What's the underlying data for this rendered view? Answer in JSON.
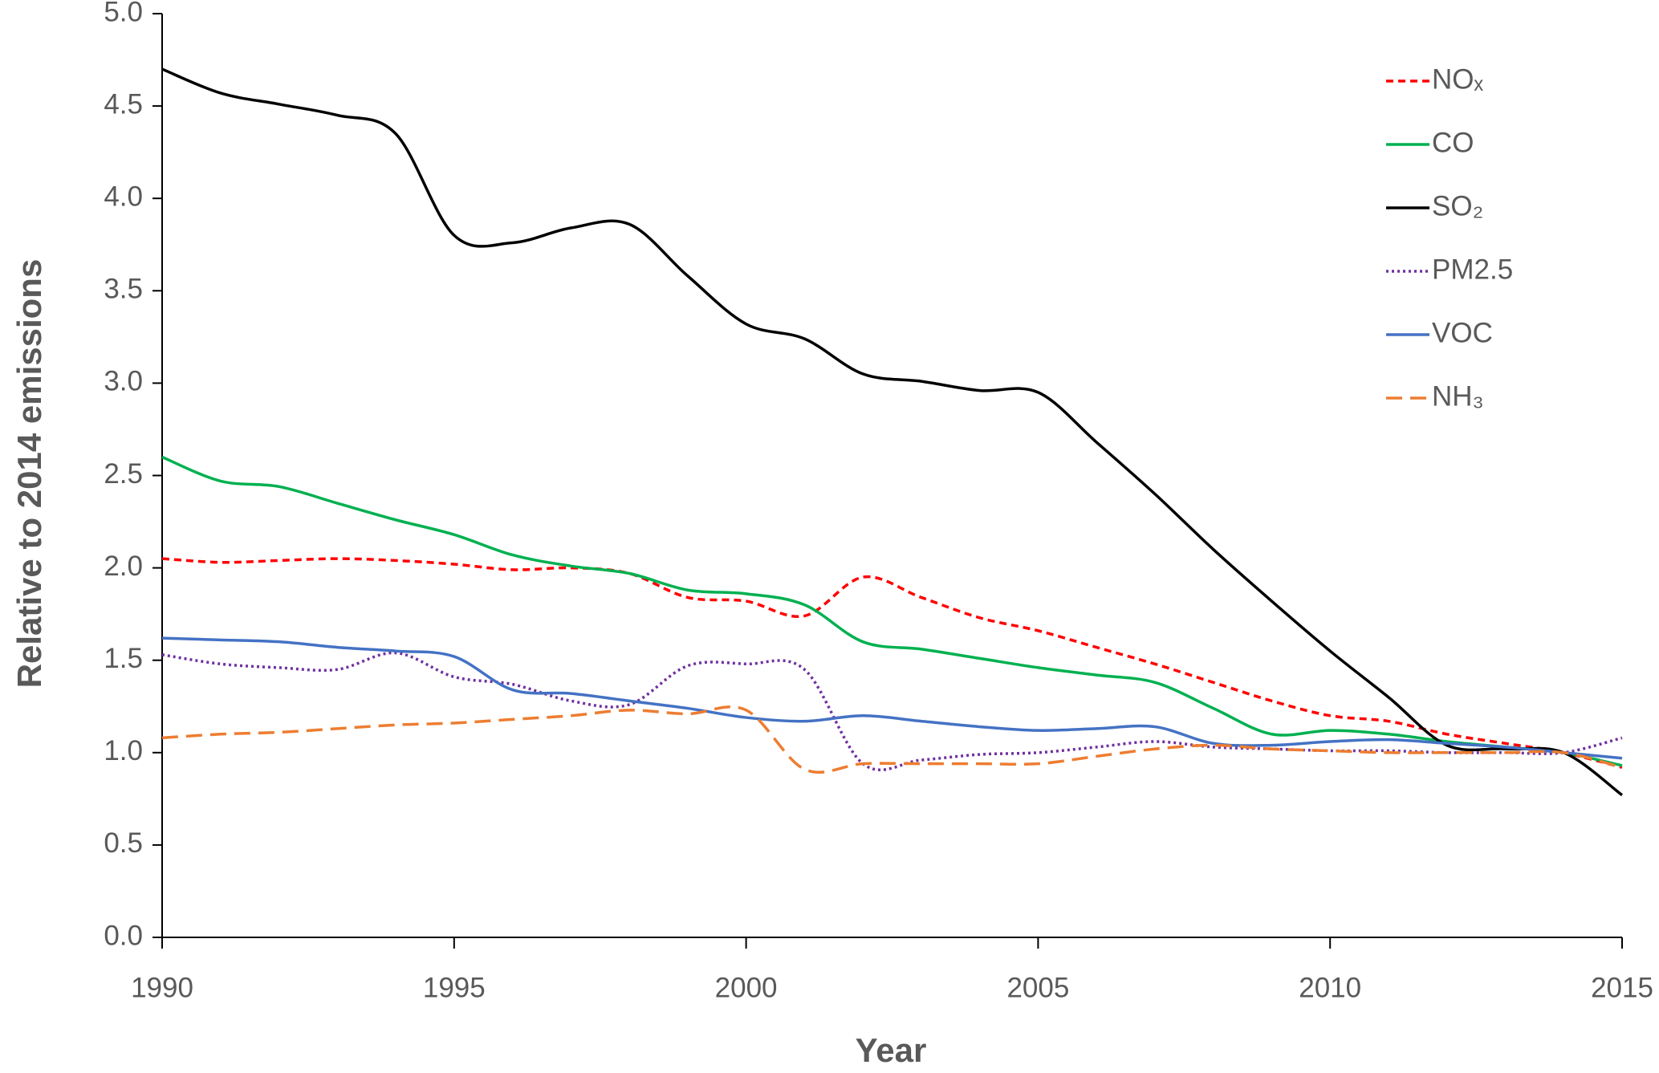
{
  "chart_data": {
    "type": "line",
    "x_label": "Year",
    "y_label": "Relative to 2014 emissions",
    "x": [
      1990,
      1991,
      1992,
      1993,
      1994,
      1995,
      1996,
      1997,
      1998,
      1999,
      2000,
      2001,
      2002,
      2003,
      2004,
      2005,
      2006,
      2007,
      2008,
      2009,
      2010,
      2011,
      2012,
      2013,
      2014,
      2015
    ],
    "xlim": [
      1990,
      2015
    ],
    "xticks": [
      1990,
      1995,
      2000,
      2005,
      2010,
      2015
    ],
    "ylim": [
      0,
      5
    ],
    "yticks": [
      {
        "value": 0,
        "label": "0.0"
      },
      {
        "value": 0.5,
        "label": "0.5"
      },
      {
        "value": 1,
        "label": "1.0"
      },
      {
        "value": 1.5,
        "label": "1.5"
      },
      {
        "value": 2,
        "label": "2.0"
      },
      {
        "value": 2.5,
        "label": "2.5"
      },
      {
        "value": 3,
        "label": "3.0"
      },
      {
        "value": 3.5,
        "label": "3.5"
      },
      {
        "value": 4,
        "label": "4.0"
      },
      {
        "value": 4.5,
        "label": "4.5"
      },
      {
        "value": 5,
        "label": "5.0"
      }
    ],
    "legend": "top-right",
    "series": [
      {
        "name": "NOₓ",
        "color": "#ff0000",
        "dash": "short",
        "values": [
          2.05,
          2.03,
          2.04,
          2.05,
          2.04,
          2.02,
          1.99,
          2.0,
          1.97,
          1.84,
          1.82,
          1.74,
          1.95,
          1.84,
          1.73,
          1.66,
          1.57,
          1.48,
          1.38,
          1.28,
          1.2,
          1.17,
          1.1,
          1.05,
          1.0,
          0.92
        ]
      },
      {
        "name": "CO",
        "color": "#00b050",
        "dash": "solid",
        "values": [
          2.6,
          2.47,
          2.44,
          2.35,
          2.26,
          2.18,
          2.07,
          2.01,
          1.97,
          1.88,
          1.86,
          1.8,
          1.6,
          1.56,
          1.51,
          1.46,
          1.42,
          1.38,
          1.24,
          1.1,
          1.12,
          1.1,
          1.06,
          1.03,
          1.0,
          0.93
        ]
      },
      {
        "name": "SO₂",
        "color": "#000000",
        "dash": "solid",
        "values": [
          4.7,
          4.57,
          4.51,
          4.45,
          4.35,
          3.8,
          3.76,
          3.84,
          3.86,
          3.58,
          3.32,
          3.24,
          3.05,
          3.01,
          2.96,
          2.95,
          2.68,
          2.4,
          2.1,
          1.82,
          1.55,
          1.3,
          1.04,
          1.02,
          1.0,
          0.77
        ]
      },
      {
        "name": "PM2.5",
        "color": "#7030a0",
        "dash": "dot",
        "values": [
          1.53,
          1.48,
          1.46,
          1.45,
          1.54,
          1.41,
          1.37,
          1.28,
          1.26,
          1.47,
          1.48,
          1.45,
          0.94,
          0.96,
          0.99,
          1.0,
          1.03,
          1.06,
          1.03,
          1.02,
          1.01,
          1.01,
          1.0,
          1.0,
          1.0,
          1.08
        ]
      },
      {
        "name": "VOC",
        "color": "#4472c4",
        "dash": "solid",
        "values": [
          1.62,
          1.61,
          1.6,
          1.57,
          1.55,
          1.52,
          1.34,
          1.32,
          1.28,
          1.24,
          1.19,
          1.17,
          1.2,
          1.17,
          1.14,
          1.12,
          1.13,
          1.14,
          1.05,
          1.04,
          1.06,
          1.07,
          1.05,
          1.03,
          1.0,
          0.97
        ]
      },
      {
        "name": "NH₃",
        "color": "#ed7d31",
        "dash": "long",
        "values": [
          1.08,
          1.1,
          1.11,
          1.13,
          1.15,
          1.16,
          1.18,
          1.2,
          1.23,
          1.21,
          1.23,
          0.91,
          0.94,
          0.94,
          0.94,
          0.94,
          0.98,
          1.02,
          1.04,
          1.02,
          1.01,
          1.0,
          1.0,
          1.0,
          1.0,
          0.92
        ]
      }
    ]
  }
}
